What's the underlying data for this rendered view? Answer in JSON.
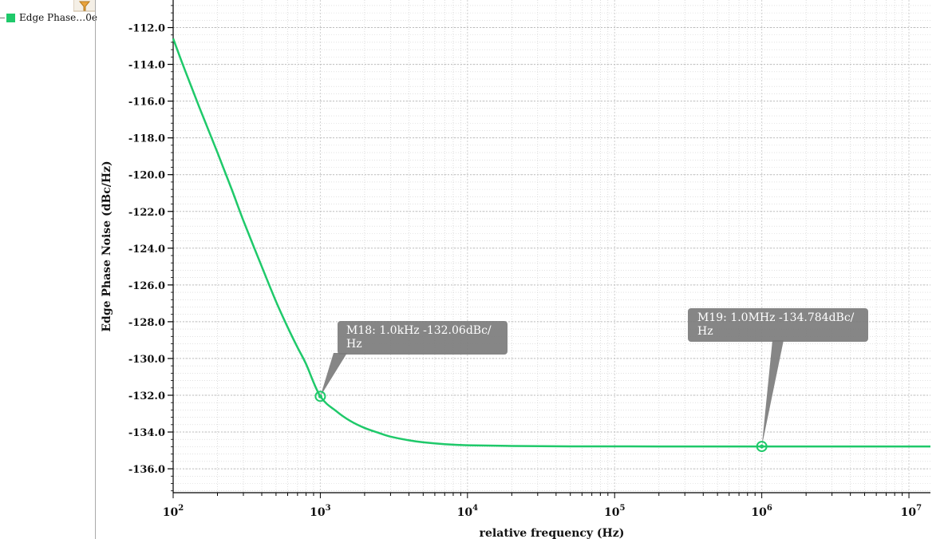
{
  "legend": {
    "items": [
      {
        "label": "Edge Phase…0e",
        "color": "#1fc96a"
      }
    ],
    "filter_icon": "filter-icon"
  },
  "colors": {
    "trace": "#1fc96a",
    "marker_bubble": "#7c7c7c",
    "grid": "#cfcfcf"
  },
  "chart_data": {
    "type": "line",
    "xlabel": "relative frequency (Hz)",
    "ylabel": "Edge Phase Noise (dBc/Hz)",
    "xscale": "log",
    "xlim": [
      100,
      14000000
    ],
    "ylim": [
      -137.3,
      -110.5
    ],
    "yticks": [
      -112.0,
      -114.0,
      -116.0,
      -118.0,
      -120.0,
      -122.0,
      -124.0,
      -126.0,
      -128.0,
      -130.0,
      -132.0,
      -134.0,
      -136.0
    ],
    "ytick_labels": [
      "-112.0",
      "-114.0",
      "-116.0",
      "-118.0",
      "-120.0",
      "-122.0",
      "-124.0",
      "-126.0",
      "-128.0",
      "-130.0",
      "-132.0",
      "-134.0",
      "-136.0"
    ],
    "xticks": [
      {
        "base": "10",
        "exp": "2",
        "value": 100
      },
      {
        "base": "10",
        "exp": "3",
        "value": 1000
      },
      {
        "base": "10",
        "exp": "4",
        "value": 10000
      },
      {
        "base": "10",
        "exp": "5",
        "value": 100000
      },
      {
        "base": "10",
        "exp": "6",
        "value": 1000000
      },
      {
        "base": "10",
        "exp": "7",
        "value": 10000000
      }
    ],
    "grid": true,
    "series": [
      {
        "name": "Edge Phase…0e",
        "x": [
          100,
          120,
          150,
          200,
          250,
          300,
          400,
          500,
          600,
          700,
          800,
          1000,
          1300,
          1600,
          2000,
          2500,
          3000,
          4000,
          5000,
          7000,
          10000,
          20000,
          50000,
          100000,
          200000,
          500000,
          1000000,
          3000000,
          14000000
        ],
        "y": [
          -112.6,
          -114.3,
          -116.3,
          -118.8,
          -120.8,
          -122.5,
          -125.0,
          -126.9,
          -128.3,
          -129.4,
          -130.3,
          -132.06,
          -132.9,
          -133.4,
          -133.78,
          -134.05,
          -134.25,
          -134.45,
          -134.56,
          -134.66,
          -134.72,
          -134.76,
          -134.78,
          -134.782,
          -134.784,
          -134.784,
          -134.784,
          -134.784,
          -134.784
        ]
      }
    ],
    "markers": [
      {
        "id": "M18",
        "x": 1000,
        "y": -132.06,
        "label_lines": [
          "M18: 1.0kHz -132.06dBc/",
          "Hz"
        ]
      },
      {
        "id": "M19",
        "x": 1000000,
        "y": -134.784,
        "label_lines": [
          "M19: 1.0MHz -134.784dBc/",
          "Hz"
        ]
      }
    ]
  }
}
